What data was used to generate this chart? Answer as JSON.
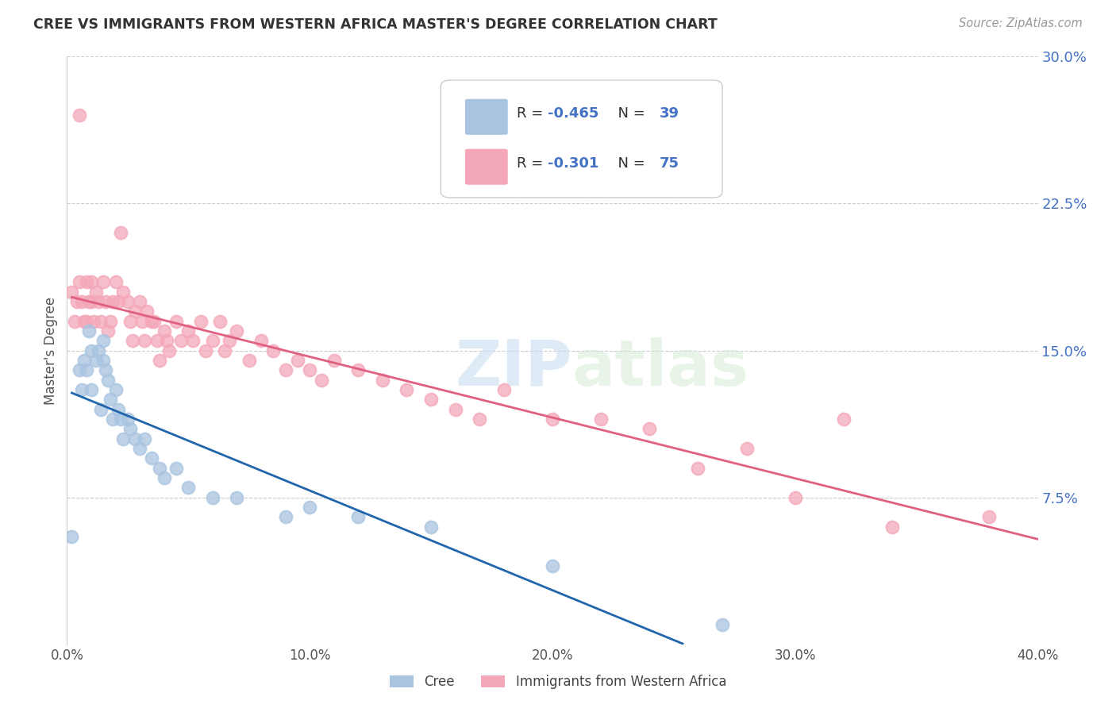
{
  "title": "CREE VS IMMIGRANTS FROM WESTERN AFRICA MASTER'S DEGREE CORRELATION CHART",
  "source": "Source: ZipAtlas.com",
  "ylabel": "Master's Degree",
  "xlim": [
    0.0,
    0.4
  ],
  "ylim": [
    0.0,
    0.3
  ],
  "xticks": [
    0.0,
    0.1,
    0.2,
    0.3,
    0.4
  ],
  "yticks": [
    0.075,
    0.15,
    0.225,
    0.3
  ],
  "ytick_labels": [
    "7.5%",
    "15.0%",
    "22.5%",
    "30.0%"
  ],
  "xtick_labels": [
    "0.0%",
    "10.0%",
    "20.0%",
    "30.0%",
    "40.0%"
  ],
  "legend_labels": [
    "Cree",
    "Immigrants from Western Africa"
  ],
  "cree_R": "-0.465",
  "cree_N": "39",
  "immig_R": "-0.301",
  "immig_N": "75",
  "cree_color": "#a8c4e0",
  "immig_color": "#f4a7b9",
  "cree_line_color": "#2166ac",
  "immig_line_color": "#e06080",
  "blue_text_color": "#4472c4",
  "watermark_color": "#d8e8f0",
  "background_color": "#ffffff",
  "grid_color": "#cccccc",
  "cree_x": [
    0.002,
    0.005,
    0.006,
    0.007,
    0.008,
    0.009,
    0.01,
    0.01,
    0.012,
    0.013,
    0.014,
    0.015,
    0.015,
    0.016,
    0.017,
    0.018,
    0.019,
    0.02,
    0.021,
    0.022,
    0.023,
    0.025,
    0.026,
    0.028,
    0.03,
    0.032,
    0.035,
    0.038,
    0.04,
    0.045,
    0.05,
    0.06,
    0.07,
    0.09,
    0.1,
    0.12,
    0.15,
    0.2,
    0.27
  ],
  "cree_y": [
    0.055,
    0.14,
    0.13,
    0.145,
    0.14,
    0.16,
    0.15,
    0.13,
    0.145,
    0.15,
    0.12,
    0.155,
    0.145,
    0.14,
    0.135,
    0.125,
    0.115,
    0.13,
    0.12,
    0.115,
    0.105,
    0.115,
    0.11,
    0.105,
    0.1,
    0.105,
    0.095,
    0.09,
    0.085,
    0.09,
    0.08,
    0.075,
    0.075,
    0.065,
    0.07,
    0.065,
    0.06,
    0.04,
    0.01
  ],
  "immig_x": [
    0.002,
    0.003,
    0.004,
    0.005,
    0.005,
    0.006,
    0.007,
    0.008,
    0.008,
    0.009,
    0.01,
    0.01,
    0.011,
    0.012,
    0.013,
    0.014,
    0.015,
    0.016,
    0.017,
    0.018,
    0.019,
    0.02,
    0.021,
    0.022,
    0.023,
    0.025,
    0.026,
    0.027,
    0.028,
    0.03,
    0.031,
    0.032,
    0.033,
    0.035,
    0.036,
    0.037,
    0.038,
    0.04,
    0.041,
    0.042,
    0.045,
    0.047,
    0.05,
    0.052,
    0.055,
    0.057,
    0.06,
    0.063,
    0.065,
    0.067,
    0.07,
    0.075,
    0.08,
    0.085,
    0.09,
    0.095,
    0.1,
    0.105,
    0.11,
    0.12,
    0.13,
    0.14,
    0.15,
    0.16,
    0.17,
    0.18,
    0.2,
    0.22,
    0.24,
    0.26,
    0.28,
    0.3,
    0.32,
    0.34,
    0.38
  ],
  "immig_y": [
    0.18,
    0.165,
    0.175,
    0.185,
    0.27,
    0.175,
    0.165,
    0.185,
    0.165,
    0.175,
    0.185,
    0.175,
    0.165,
    0.18,
    0.175,
    0.165,
    0.185,
    0.175,
    0.16,
    0.165,
    0.175,
    0.185,
    0.175,
    0.21,
    0.18,
    0.175,
    0.165,
    0.155,
    0.17,
    0.175,
    0.165,
    0.155,
    0.17,
    0.165,
    0.165,
    0.155,
    0.145,
    0.16,
    0.155,
    0.15,
    0.165,
    0.155,
    0.16,
    0.155,
    0.165,
    0.15,
    0.155,
    0.165,
    0.15,
    0.155,
    0.16,
    0.145,
    0.155,
    0.15,
    0.14,
    0.145,
    0.14,
    0.135,
    0.145,
    0.14,
    0.135,
    0.13,
    0.125,
    0.12,
    0.115,
    0.13,
    0.115,
    0.115,
    0.11,
    0.09,
    0.1,
    0.075,
    0.115,
    0.06,
    0.065
  ]
}
